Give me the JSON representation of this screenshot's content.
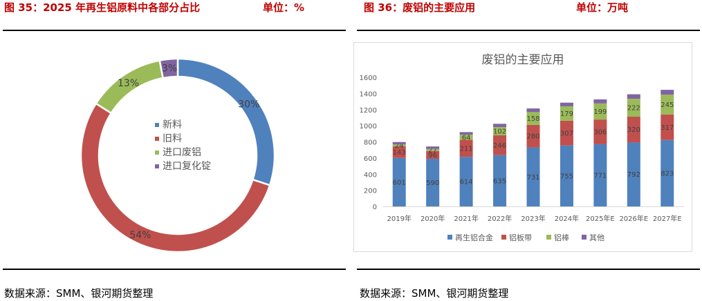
{
  "left": {
    "title": "图 35：2025 年再生铝原料中各部分占比",
    "unit": "单位：%",
    "source": "数据来源：SMM、银河期货整理"
  },
  "right": {
    "title": "图 36：废铝的主要应用",
    "unit": "单位：万吨",
    "source": "数据来源：SMM、银河期货整理"
  },
  "chart_data": [
    {
      "type": "pie",
      "donut": true,
      "categories": [
        "新料",
        "旧料",
        "进口废铝",
        "进口复化锭"
      ],
      "values": [
        30,
        54,
        13,
        3
      ],
      "value_labels": [
        "30%",
        "54%",
        "13%",
        "3%"
      ],
      "colors": [
        "#4F81BD",
        "#C0504D",
        "#9BBB59",
        "#8064A2"
      ],
      "legend_position": "center"
    },
    {
      "type": "bar",
      "stacked": true,
      "title": "废铝的主要应用",
      "categories": [
        "2019年",
        "2020年",
        "2021年",
        "2022年",
        "2023年",
        "2024年",
        "2025年E",
        "2026年E",
        "2027年E"
      ],
      "series": [
        {
          "name": "再生铝合金",
          "color": "#4F81BD",
          "values": [
            601,
            590,
            614,
            635,
            731,
            755,
            771,
            792,
            823
          ]
        },
        {
          "name": "铝板带",
          "color": "#C0504D",
          "values": [
            143,
            96,
            211,
            246,
            280,
            307,
            306,
            320,
            317
          ]
        },
        {
          "name": "铝棒",
          "color": "#9BBB59",
          "values": [
            24,
            27,
            64,
            102,
            158,
            179,
            199,
            222,
            245
          ]
        },
        {
          "name": "其他",
          "color": "#8064A2",
          "values": [
            30,
            30,
            32,
            41,
            45,
            45,
            50,
            56,
            60
          ]
        }
      ],
      "ylim": [
        0,
        1600
      ],
      "yticks": [
        0,
        200,
        400,
        600,
        800,
        1000,
        1200,
        1400,
        1600
      ],
      "legend_position": "bottom",
      "grid": false
    }
  ]
}
